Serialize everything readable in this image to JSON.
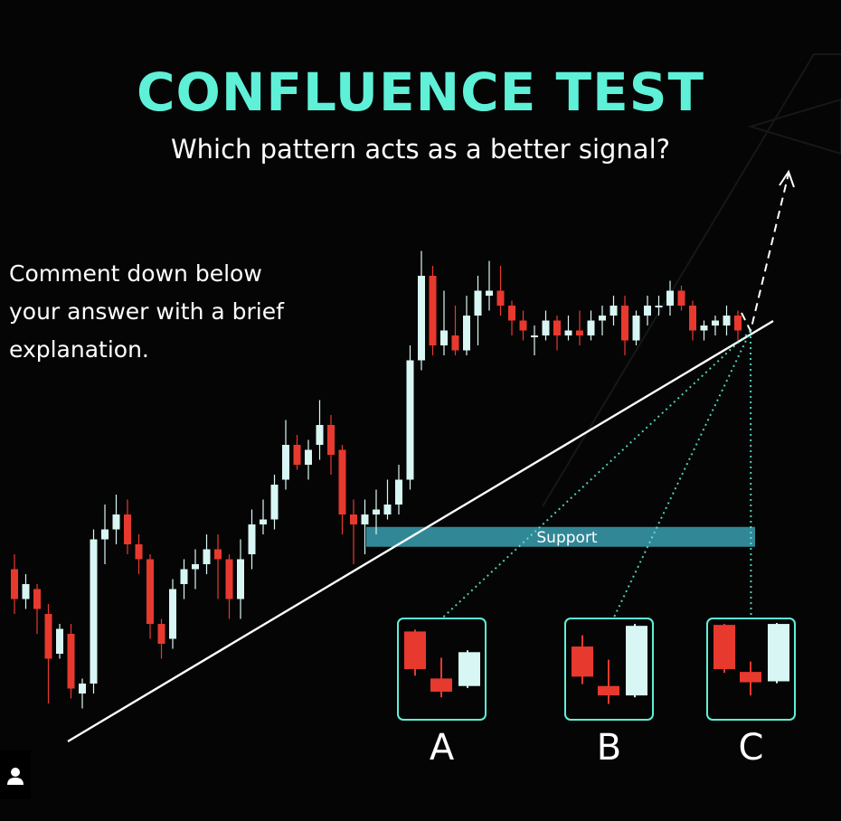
{
  "title": "CONFLUENCE TEST",
  "subtitle": "Which pattern acts as a better signal?",
  "comment_lines": [
    "Comment down below",
    "your answer with a brief",
    "explanation."
  ],
  "colors": {
    "accent": "#5ff0d8",
    "bull": "#d8f7f4",
    "bear": "#e8392e",
    "support": "#3b9fb0",
    "background": "#050505"
  },
  "icons": {
    "user": "user-icon",
    "arrow": "dashed-arrow-up-right"
  },
  "chart_data": {
    "type": "candlestick",
    "title": "CONFLUENCE TEST",
    "subtitle": "Which pattern acts as a better signal?",
    "support_label": "Support",
    "support_zone": [
      0.355,
      0.395
    ],
    "y_range": [
      0,
      1
    ],
    "note": "no axes or tick labels are shown; prices are relative (0 = bottom, 1 = top of chart area)",
    "trendline": [
      [
        0,
        0.0
      ],
      [
        1,
        0.42
      ]
    ],
    "candles": [
      [
        0.31,
        0.25,
        0.34,
        0.22
      ],
      [
        0.25,
        0.28,
        0.3,
        0.23
      ],
      [
        0.27,
        0.23,
        0.28,
        0.18
      ],
      [
        0.22,
        0.13,
        0.24,
        0.04
      ],
      [
        0.14,
        0.19,
        0.2,
        0.13
      ],
      [
        0.18,
        0.07,
        0.2,
        0.05
      ],
      [
        0.06,
        0.08,
        0.09,
        0.03
      ],
      [
        0.08,
        0.37,
        0.39,
        0.06
      ],
      [
        0.37,
        0.39,
        0.44,
        0.32
      ],
      [
        0.39,
        0.42,
        0.46,
        0.36
      ],
      [
        0.42,
        0.36,
        0.45,
        0.34
      ],
      [
        0.36,
        0.33,
        0.38,
        0.3
      ],
      [
        0.33,
        0.2,
        0.34,
        0.17
      ],
      [
        0.2,
        0.16,
        0.21,
        0.13
      ],
      [
        0.17,
        0.27,
        0.29,
        0.15
      ],
      [
        0.28,
        0.31,
        0.33,
        0.25
      ],
      [
        0.31,
        0.32,
        0.35,
        0.27
      ],
      [
        0.32,
        0.35,
        0.38,
        0.3
      ],
      [
        0.35,
        0.33,
        0.38,
        0.25
      ],
      [
        0.33,
        0.25,
        0.34,
        0.21
      ],
      [
        0.25,
        0.33,
        0.37,
        0.21
      ],
      [
        0.34,
        0.4,
        0.43,
        0.31
      ],
      [
        0.4,
        0.41,
        0.45,
        0.38
      ],
      [
        0.41,
        0.48,
        0.5,
        0.39
      ],
      [
        0.49,
        0.56,
        0.61,
        0.47
      ],
      [
        0.56,
        0.52,
        0.58,
        0.51
      ],
      [
        0.52,
        0.55,
        0.57,
        0.49
      ],
      [
        0.56,
        0.6,
        0.65,
        0.53
      ],
      [
        0.6,
        0.54,
        0.62,
        0.5
      ],
      [
        0.55,
        0.42,
        0.56,
        0.38
      ],
      [
        0.42,
        0.4,
        0.45,
        0.32
      ],
      [
        0.4,
        0.42,
        0.45,
        0.34
      ],
      [
        0.42,
        0.43,
        0.47,
        0.38
      ],
      [
        0.42,
        0.44,
        0.49,
        0.41
      ],
      [
        0.44,
        0.49,
        0.52,
        0.42
      ],
      [
        0.49,
        0.73,
        0.76,
        0.47
      ],
      [
        0.73,
        0.9,
        0.95,
        0.71
      ],
      [
        0.9,
        0.76,
        0.92,
        0.74
      ],
      [
        0.76,
        0.79,
        0.87,
        0.74
      ],
      [
        0.78,
        0.75,
        0.84,
        0.74
      ],
      [
        0.75,
        0.82,
        0.86,
        0.74
      ],
      [
        0.82,
        0.87,
        0.9,
        0.76
      ],
      [
        0.86,
        0.87,
        0.93,
        0.83
      ],
      [
        0.87,
        0.84,
        0.92,
        0.82
      ],
      [
        0.84,
        0.81,
        0.85,
        0.78
      ],
      [
        0.81,
        0.79,
        0.83,
        0.77
      ],
      [
        0.78,
        0.78,
        0.8,
        0.74
      ],
      [
        0.78,
        0.81,
        0.83,
        0.77
      ],
      [
        0.81,
        0.78,
        0.82,
        0.75
      ],
      [
        0.78,
        0.79,
        0.82,
        0.77
      ],
      [
        0.79,
        0.78,
        0.83,
        0.76
      ],
      [
        0.78,
        0.81,
        0.83,
        0.77
      ],
      [
        0.81,
        0.82,
        0.84,
        0.78
      ],
      [
        0.82,
        0.84,
        0.86,
        0.8
      ],
      [
        0.84,
        0.77,
        0.86,
        0.74
      ],
      [
        0.77,
        0.82,
        0.83,
        0.76
      ],
      [
        0.82,
        0.84,
        0.86,
        0.8
      ],
      [
        0.84,
        0.84,
        0.86,
        0.82
      ],
      [
        0.84,
        0.87,
        0.89,
        0.82
      ],
      [
        0.87,
        0.84,
        0.88,
        0.83
      ],
      [
        0.84,
        0.79,
        0.85,
        0.77
      ],
      [
        0.79,
        0.8,
        0.81,
        0.77
      ],
      [
        0.8,
        0.81,
        0.82,
        0.78
      ],
      [
        0.8,
        0.82,
        0.84,
        0.78
      ],
      [
        0.82,
        0.79,
        0.83,
        0.77
      ]
    ],
    "patterns": [
      {
        "label": "A",
        "candles": [
          [
            0.9,
            0.5,
            0.92,
            0.43
          ],
          [
            0.4,
            0.26,
            0.62,
            0.2
          ],
          [
            0.32,
            0.68,
            0.7,
            0.3
          ]
        ]
      },
      {
        "label": "B",
        "candles": [
          [
            0.74,
            0.42,
            0.86,
            0.34
          ],
          [
            0.32,
            0.22,
            0.6,
            0.13
          ],
          [
            0.22,
            0.96,
            0.98,
            0.2
          ]
        ]
      },
      {
        "label": "C",
        "candles": [
          [
            0.97,
            0.5,
            0.98,
            0.46
          ],
          [
            0.47,
            0.36,
            0.58,
            0.22
          ],
          [
            0.37,
            0.98,
            0.99,
            0.35
          ]
        ]
      }
    ]
  }
}
